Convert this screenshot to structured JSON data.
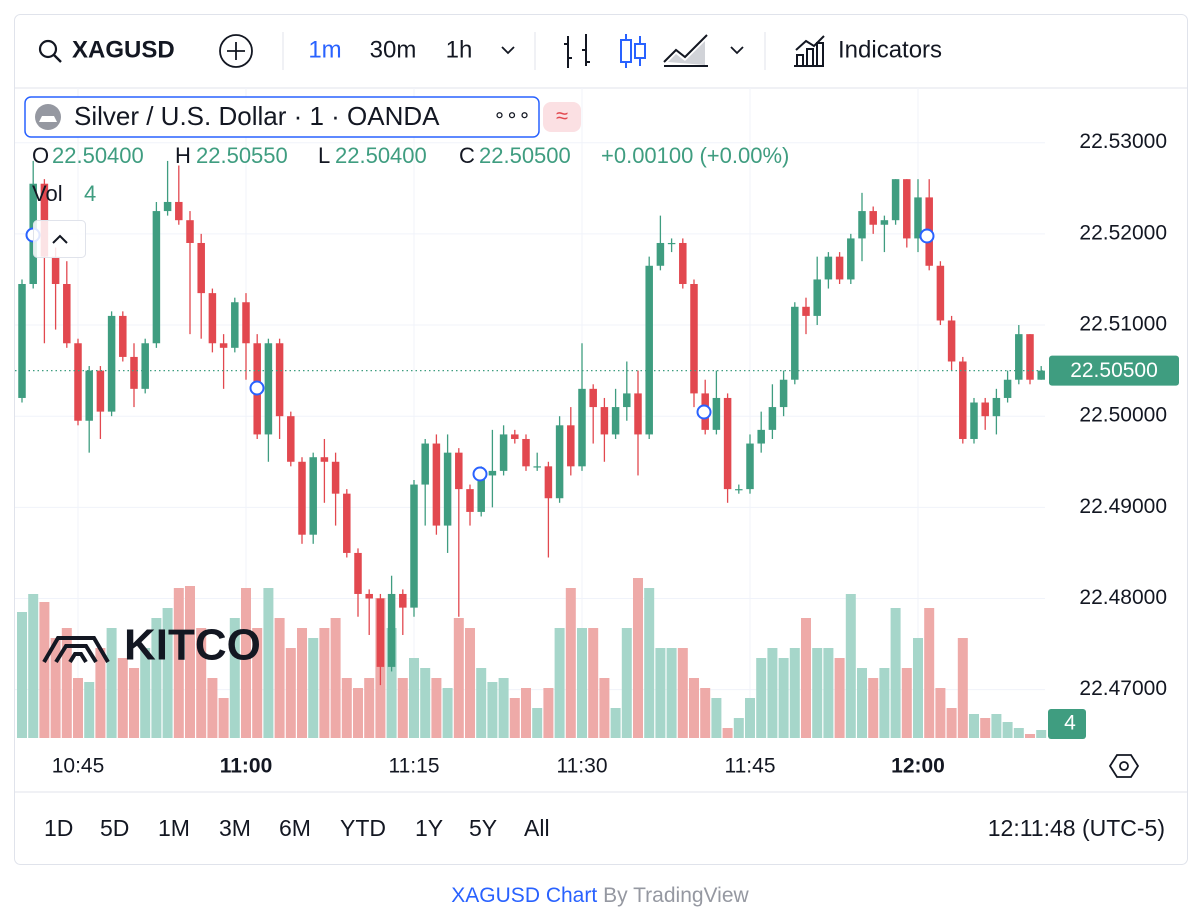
{
  "toolbar": {
    "symbol": "XAGUSD",
    "intervals": [
      "1m",
      "30m",
      "1h"
    ],
    "indicators": "Indicators"
  },
  "legend": {
    "title": "Silver / U.S. Dollar · 1 · OANDA",
    "more": "∘∘∘",
    "badge": "≈",
    "o_label": "O",
    "o_value": "22.50400",
    "h_label": "H",
    "h_value": "22.50550",
    "l_label": "L",
    "l_value": "22.50400",
    "c_label": "C",
    "c_value": "22.50500",
    "change": "+0.00100 (+0.00%)",
    "vol_label": "Vol",
    "vol_value": "4"
  },
  "chart_data": {
    "type": "candlestick",
    "up_color": "#3f9d80",
    "down_color": "#e2484f",
    "volume_up_color": "#a6d6ca",
    "volume_down_color": "#eeaaa8",
    "ylim": [
      22.4647,
      22.536
    ],
    "yticks": [
      {
        "value": 22.47,
        "label": "22.47000"
      },
      {
        "value": 22.48,
        "label": "22.48000"
      },
      {
        "value": 22.49,
        "label": "22.49000"
      },
      {
        "value": 22.5,
        "label": "22.50000"
      },
      {
        "value": 22.51,
        "label": "22.51000"
      },
      {
        "value": 22.52,
        "label": "22.52000"
      },
      {
        "value": 22.53,
        "label": "22.53000"
      }
    ],
    "grid": true,
    "last_price_label": "22.50500",
    "last_volume_label": "4",
    "categories": [
      null,
      null,
      null,
      null,
      null,
      "10:45",
      null,
      null,
      null,
      null,
      null,
      null,
      null,
      null,
      null,
      null,
      null,
      null,
      null,
      null,
      "11:00",
      null,
      null,
      null,
      null,
      null,
      null,
      null,
      null,
      null,
      null,
      null,
      null,
      null,
      null,
      "11:15",
      null,
      null,
      null,
      null,
      null,
      null,
      null,
      null,
      null,
      null,
      null,
      null,
      null,
      null,
      "11:30",
      null,
      null,
      null,
      null,
      null,
      null,
      null,
      null,
      null,
      null,
      null,
      null,
      null,
      null,
      "11:45",
      null,
      null,
      null,
      null,
      null,
      null,
      null,
      null,
      null,
      null,
      null,
      null,
      null,
      null,
      "12:00",
      null,
      null,
      null,
      null,
      null,
      null,
      null,
      null,
      null,
      null,
      null
    ],
    "ohlc": [
      {
        "o": 22.502,
        "h": 22.515,
        "l": 22.5015,
        "c": 22.5145
      },
      {
        "o": 22.5145,
        "h": 22.528,
        "l": 22.514,
        "c": 22.5255
      },
      {
        "o": 22.5255,
        "h": 22.526,
        "l": 22.508,
        "c": 22.5175
      },
      {
        "o": 22.5175,
        "h": 22.5185,
        "l": 22.5095,
        "c": 22.5145
      },
      {
        "o": 22.5145,
        "h": 22.517,
        "l": 22.5075,
        "c": 22.508
      },
      {
        "o": 22.508,
        "h": 22.5085,
        "l": 22.499,
        "c": 22.4995
      },
      {
        "o": 22.4995,
        "h": 22.5055,
        "l": 22.496,
        "c": 22.505
      },
      {
        "o": 22.505,
        "h": 22.5055,
        "l": 22.4975,
        "c": 22.5005
      },
      {
        "o": 22.5005,
        "h": 22.5115,
        "l": 22.5,
        "c": 22.511
      },
      {
        "o": 22.511,
        "h": 22.5115,
        "l": 22.506,
        "c": 22.5065
      },
      {
        "o": 22.5065,
        "h": 22.508,
        "l": 22.501,
        "c": 22.503
      },
      {
        "o": 22.503,
        "h": 22.5085,
        "l": 22.5025,
        "c": 22.508
      },
      {
        "o": 22.508,
        "h": 22.5235,
        "l": 22.5075,
        "c": 22.5225
      },
      {
        "o": 22.5225,
        "h": 22.528,
        "l": 22.522,
        "c": 22.5235
      },
      {
        "o": 22.5235,
        "h": 22.5275,
        "l": 22.521,
        "c": 22.5215
      },
      {
        "o": 22.5215,
        "h": 22.5225,
        "l": 22.509,
        "c": 22.519
      },
      {
        "o": 22.519,
        "h": 22.52,
        "l": 22.5085,
        "c": 22.5135
      },
      {
        "o": 22.5135,
        "h": 22.514,
        "l": 22.507,
        "c": 22.508
      },
      {
        "o": 22.508,
        "h": 22.509,
        "l": 22.503,
        "c": 22.5075
      },
      {
        "o": 22.5075,
        "h": 22.513,
        "l": 22.507,
        "c": 22.5125
      },
      {
        "o": 22.5125,
        "h": 22.5135,
        "l": 22.504,
        "c": 22.508
      },
      {
        "o": 22.508,
        "h": 22.509,
        "l": 22.4975,
        "c": 22.498
      },
      {
        "o": 22.498,
        "h": 22.5085,
        "l": 22.495,
        "c": 22.508
      },
      {
        "o": 22.508,
        "h": 22.5085,
        "l": 22.4975,
        "c": 22.5
      },
      {
        "o": 22.5,
        "h": 22.5005,
        "l": 22.4945,
        "c": 22.495
      },
      {
        "o": 22.495,
        "h": 22.4955,
        "l": 22.486,
        "c": 22.487
      },
      {
        "o": 22.487,
        "h": 22.496,
        "l": 22.486,
        "c": 22.4955
      },
      {
        "o": 22.4955,
        "h": 22.4975,
        "l": 22.4905,
        "c": 22.495
      },
      {
        "o": 22.495,
        "h": 22.496,
        "l": 22.488,
        "c": 22.4915
      },
      {
        "o": 22.4915,
        "h": 22.492,
        "l": 22.4845,
        "c": 22.485
      },
      {
        "o": 22.485,
        "h": 22.4855,
        "l": 22.478,
        "c": 22.4805
      },
      {
        "o": 22.4805,
        "h": 22.481,
        "l": 22.476,
        "c": 22.48
      },
      {
        "o": 22.48,
        "h": 22.4805,
        "l": 22.4705,
        "c": 22.4725
      },
      {
        "o": 22.4725,
        "h": 22.4825,
        "l": 22.472,
        "c": 22.4805
      },
      {
        "o": 22.4805,
        "h": 22.481,
        "l": 22.476,
        "c": 22.479
      },
      {
        "o": 22.479,
        "h": 22.493,
        "l": 22.478,
        "c": 22.4925
      },
      {
        "o": 22.4925,
        "h": 22.4975,
        "l": 22.488,
        "c": 22.497
      },
      {
        "o": 22.497,
        "h": 22.498,
        "l": 22.487,
        "c": 22.488
      },
      {
        "o": 22.488,
        "h": 22.498,
        "l": 22.485,
        "c": 22.496
      },
      {
        "o": 22.496,
        "h": 22.4965,
        "l": 22.478,
        "c": 22.492
      },
      {
        "o": 22.492,
        "h": 22.4925,
        "l": 22.488,
        "c": 22.4895
      },
      {
        "o": 22.4895,
        "h": 22.4945,
        "l": 22.489,
        "c": 22.4935
      },
      {
        "o": 22.4935,
        "h": 22.4985,
        "l": 22.49,
        "c": 22.494
      },
      {
        "o": 22.494,
        "h": 22.499,
        "l": 22.4935,
        "c": 22.498
      },
      {
        "o": 22.498,
        "h": 22.4985,
        "l": 22.497,
        "c": 22.4975
      },
      {
        "o": 22.4975,
        "h": 22.498,
        "l": 22.494,
        "c": 22.4945
      },
      {
        "o": 22.4945,
        "h": 22.496,
        "l": 22.494,
        "c": 22.4945
      },
      {
        "o": 22.4945,
        "h": 22.495,
        "l": 22.4845,
        "c": 22.491
      },
      {
        "o": 22.491,
        "h": 22.5,
        "l": 22.4905,
        "c": 22.499
      },
      {
        "o": 22.499,
        "h": 22.501,
        "l": 22.4935,
        "c": 22.4945
      },
      {
        "o": 22.4945,
        "h": 22.508,
        "l": 22.494,
        "c": 22.503
      },
      {
        "o": 22.503,
        "h": 22.5035,
        "l": 22.497,
        "c": 22.501
      },
      {
        "o": 22.501,
        "h": 22.502,
        "l": 22.495,
        "c": 22.498
      },
      {
        "o": 22.498,
        "h": 22.503,
        "l": 22.4975,
        "c": 22.501
      },
      {
        "o": 22.501,
        "h": 22.506,
        "l": 22.4995,
        "c": 22.5025
      },
      {
        "o": 22.5025,
        "h": 22.505,
        "l": 22.4935,
        "c": 22.498
      },
      {
        "o": 22.498,
        "h": 22.5175,
        "l": 22.4975,
        "c": 22.5165
      },
      {
        "o": 22.5165,
        "h": 22.522,
        "l": 22.516,
        "c": 22.519
      },
      {
        "o": 22.519,
        "h": 22.5195,
        "l": 22.518,
        "c": 22.519
      },
      {
        "o": 22.519,
        "h": 22.5195,
        "l": 22.514,
        "c": 22.5145
      },
      {
        "o": 22.5145,
        "h": 22.515,
        "l": 22.501,
        "c": 22.5025
      },
      {
        "o": 22.5025,
        "h": 22.504,
        "l": 22.498,
        "c": 22.4985
      },
      {
        "o": 22.4985,
        "h": 22.505,
        "l": 22.498,
        "c": 22.502
      },
      {
        "o": 22.502,
        "h": 22.5025,
        "l": 22.4905,
        "c": 22.492
      },
      {
        "o": 22.492,
        "h": 22.4925,
        "l": 22.4915,
        "c": 22.492
      },
      {
        "o": 22.492,
        "h": 22.498,
        "l": 22.4915,
        "c": 22.497
      },
      {
        "o": 22.497,
        "h": 22.5005,
        "l": 22.496,
        "c": 22.4985
      },
      {
        "o": 22.4985,
        "h": 22.5035,
        "l": 22.4975,
        "c": 22.501
      },
      {
        "o": 22.501,
        "h": 22.505,
        "l": 22.5,
        "c": 22.504
      },
      {
        "o": 22.504,
        "h": 22.5125,
        "l": 22.5035,
        "c": 22.512
      },
      {
        "o": 22.512,
        "h": 22.513,
        "l": 22.509,
        "c": 22.511
      },
      {
        "o": 22.511,
        "h": 22.5175,
        "l": 22.51,
        "c": 22.515
      },
      {
        "o": 22.515,
        "h": 22.518,
        "l": 22.514,
        "c": 22.5175
      },
      {
        "o": 22.5175,
        "h": 22.518,
        "l": 22.5145,
        "c": 22.515
      },
      {
        "o": 22.515,
        "h": 22.52,
        "l": 22.5145,
        "c": 22.5195
      },
      {
        "o": 22.5195,
        "h": 22.5245,
        "l": 22.517,
        "c": 22.5225
      },
      {
        "o": 22.5225,
        "h": 22.523,
        "l": 22.52,
        "c": 22.521
      },
      {
        "o": 22.521,
        "h": 22.522,
        "l": 22.518,
        "c": 22.5215
      },
      {
        "o": 22.5215,
        "h": 22.526,
        "l": 22.521,
        "c": 22.526
      },
      {
        "o": 22.526,
        "h": 22.526,
        "l": 22.5185,
        "c": 22.5195
      },
      {
        "o": 22.5195,
        "h": 22.526,
        "l": 22.518,
        "c": 22.524
      },
      {
        "o": 22.524,
        "h": 22.526,
        "l": 22.516,
        "c": 22.5165
      },
      {
        "o": 22.5165,
        "h": 22.517,
        "l": 22.51,
        "c": 22.5105
      },
      {
        "o": 22.5105,
        "h": 22.511,
        "l": 22.505,
        "c": 22.506
      },
      {
        "o": 22.506,
        "h": 22.5065,
        "l": 22.497,
        "c": 22.4975
      },
      {
        "o": 22.4975,
        "h": 22.502,
        "l": 22.497,
        "c": 22.5015
      },
      {
        "o": 22.5015,
        "h": 22.502,
        "l": 22.4985,
        "c": 22.5
      },
      {
        "o": 22.5,
        "h": 22.503,
        "l": 22.498,
        "c": 22.502
      },
      {
        "o": 22.502,
        "h": 22.505,
        "l": 22.5015,
        "c": 22.504
      },
      {
        "o": 22.504,
        "h": 22.51,
        "l": 22.5035,
        "c": 22.509
      },
      {
        "o": 22.509,
        "h": 22.509,
        "l": 22.5035,
        "c": 22.504
      },
      {
        "o": 22.504,
        "h": 22.5055,
        "l": 22.504,
        "c": 22.505
      }
    ],
    "volume": [
      63,
      72,
      68,
      50,
      55,
      30,
      28,
      45,
      55,
      40,
      35,
      45,
      60,
      65,
      75,
      76,
      55,
      30,
      20,
      60,
      75,
      55,
      75,
      60,
      45,
      55,
      50,
      55,
      60,
      30,
      25,
      30,
      70,
      55,
      30,
      40,
      35,
      30,
      25,
      60,
      55,
      35,
      28,
      30,
      20,
      25,
      15,
      25,
      55,
      75,
      55,
      55,
      30,
      15,
      55,
      80,
      75,
      45,
      45,
      45,
      30,
      25,
      20,
      5,
      10,
      20,
      40,
      45,
      40,
      45,
      60,
      45,
      45,
      40,
      72,
      35,
      30,
      35,
      65,
      35,
      50,
      65,
      25,
      15,
      50,
      12,
      10,
      12,
      8,
      5,
      2,
      4
    ]
  },
  "ranges": [
    "1D",
    "5D",
    "1M",
    "3M",
    "6M",
    "YTD",
    "1Y",
    "5Y",
    "All"
  ],
  "clock": "12:11:48 (UTC-5)",
  "logo": "KITCO",
  "footer": {
    "link": "XAGUSD Chart",
    "by": "By TradingView"
  }
}
